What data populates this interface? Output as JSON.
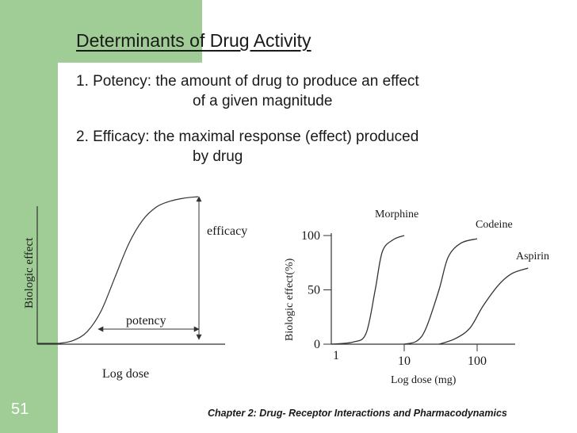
{
  "slide": {
    "number": "51",
    "title": "Determinants of Drug Activity",
    "points": [
      {
        "line1": "1. Potency: the amount of drug to produce an effect",
        "line2": "of a given magnitude"
      },
      {
        "line1": "2. Efficacy: the maximal response (effect) produced",
        "line2": "by drug"
      }
    ],
    "footer": "Chapter 2: Drug- Receptor Interactions and Pharmacodynamics"
  },
  "colors": {
    "band": "#9fcd95",
    "text": "#1a1a1a",
    "line": "#333333"
  },
  "chart_data": [
    {
      "type": "line",
      "xlabel": "Log dose",
      "ylabel": "Biologic effect",
      "annotations": [
        "efficacy",
        "potency"
      ],
      "series": [
        {
          "x": [
            0,
            0.1,
            0.2,
            0.3,
            0.4,
            0.5,
            0.6,
            0.7,
            0.8,
            0.9,
            1.0
          ],
          "y": [
            0,
            0.02,
            0.08,
            0.22,
            0.45,
            0.68,
            0.84,
            0.93,
            0.97,
            0.99,
            1.0
          ]
        }
      ]
    },
    {
      "type": "line",
      "xlabel": "Log dose (mg)",
      "ylabel": "Biologic effect(%)",
      "x_ticks": [
        "1",
        "10",
        "100"
      ],
      "y_ticks": [
        "0",
        "50",
        "100"
      ],
      "ylim": [
        0,
        100
      ],
      "series": [
        {
          "name": "Morphine",
          "x": [
            1,
            2,
            3,
            4,
            5,
            7,
            10
          ],
          "y": [
            0,
            2,
            10,
            50,
            85,
            96,
            100
          ]
        },
        {
          "name": "Codeine",
          "x": [
            10,
            15,
            20,
            30,
            40,
            60,
            100
          ],
          "y": [
            0,
            3,
            15,
            50,
            80,
            93,
            97
          ]
        },
        {
          "name": "Aspirin",
          "x": [
            30,
            50,
            80,
            120,
            200,
            300,
            500
          ],
          "y": [
            0,
            5,
            15,
            35,
            55,
            65,
            70
          ]
        }
      ]
    }
  ]
}
